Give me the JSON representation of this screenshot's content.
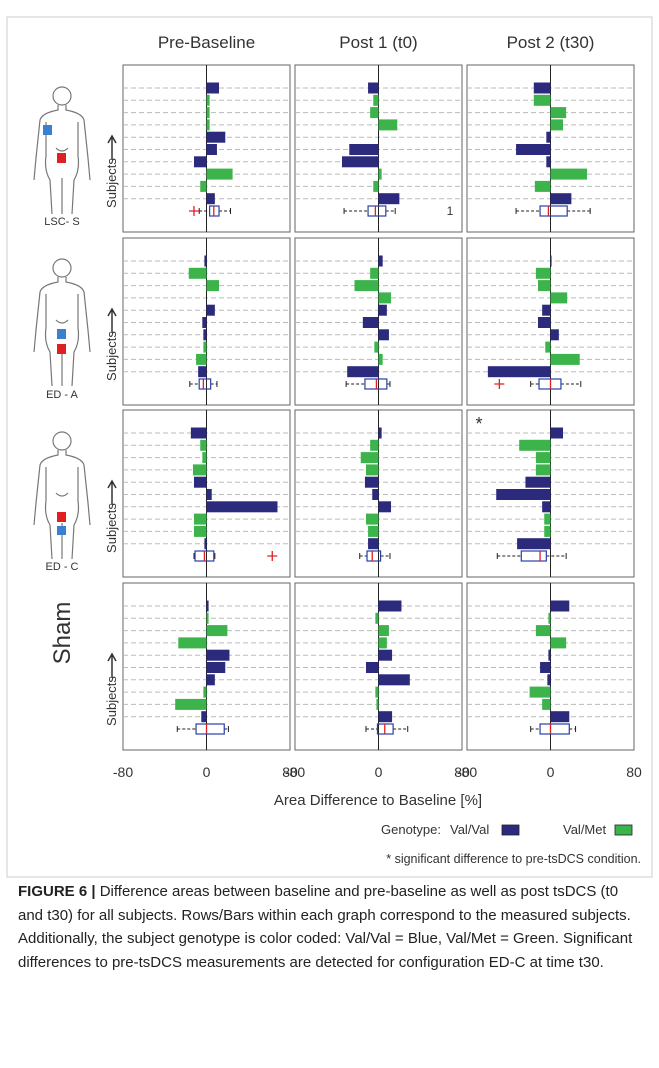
{
  "chart_data": {
    "type": "bar",
    "orientation": "horizontal",
    "column_titles": [
      "Pre-Baseline",
      "Post 1 (t0)",
      "Post 2 (t30)"
    ],
    "row_labels": [
      "LSC- S",
      "ED - A",
      "ED - C",
      "Sham"
    ],
    "ylabel": "Subjects",
    "xlabel": "Area Difference to Baseline [%]",
    "xlim": [
      -80,
      80
    ],
    "xticks": [
      -80,
      0,
      80
    ],
    "grid": true,
    "legend_title": "Genotype:",
    "series": [
      {
        "name": "Val/Val",
        "color": "#2b2a7c"
      },
      {
        "name": "Val/Met",
        "color": "#3cb44b"
      }
    ],
    "panels": [
      [
        {
          "series": [
            {
              "values": [
                12,
                null,
                null,
                null,
                18,
                10,
                -12,
                null,
                null,
                8
              ]
            },
            {
              "values": [
                null,
                3,
                3,
                3,
                null,
                null,
                null,
                25,
                -6,
                null
              ]
            }
          ],
          "box": {
            "whisker_low": -7,
            "q1": 3,
            "median": 7,
            "q3": 12,
            "whisker_high": 23,
            "outliers": [
              -12
            ]
          }
        },
        {
          "series": [
            {
              "values": [
                -10,
                null,
                null,
                null,
                0,
                -28,
                -35,
                null,
                null,
                20
              ]
            },
            {
              "values": [
                null,
                -5,
                -8,
                18,
                null,
                null,
                null,
                3,
                -5,
                null
              ]
            }
          ],
          "box": {
            "whisker_low": -33,
            "q1": -10,
            "median": -3,
            "q3": 7,
            "whisker_high": 16,
            "outliers": []
          },
          "annotation": "1"
        },
        {
          "series": [
            {
              "values": [
                -16,
                null,
                null,
                null,
                -4,
                -33,
                -4,
                null,
                null,
                20
              ]
            },
            {
              "values": [
                null,
                -16,
                15,
                12,
                null,
                null,
                null,
                35,
                -15,
                null
              ]
            }
          ],
          "box": {
            "whisker_low": -33,
            "q1": -10,
            "median": -2,
            "q3": 16,
            "whisker_high": 38,
            "outliers": []
          }
        }
      ],
      [
        {
          "series": [
            {
              "values": [
                -2,
                null,
                null,
                null,
                8,
                -4,
                -3,
                null,
                null,
                -8
              ]
            },
            {
              "values": [
                null,
                -17,
                12,
                0,
                null,
                null,
                null,
                -3,
                -10,
                null
              ]
            }
          ],
          "box": {
            "whisker_low": -16,
            "q1": -7,
            "median": -3,
            "q3": 4,
            "whisker_high": 10,
            "outliers": []
          }
        },
        {
          "series": [
            {
              "values": [
                4,
                null,
                null,
                null,
                8,
                -15,
                10,
                null,
                null,
                -30
              ]
            },
            {
              "values": [
                null,
                -8,
                -23,
                12,
                null,
                null,
                null,
                -4,
                4,
                null
              ]
            }
          ],
          "box": {
            "whisker_low": -31,
            "q1": -13,
            "median": -2,
            "q3": 8,
            "whisker_high": 11,
            "outliers": []
          }
        },
        {
          "series": [
            {
              "values": [
                1,
                null,
                null,
                null,
                -8,
                -12,
                8,
                null,
                null,
                -60
              ]
            },
            {
              "values": [
                null,
                -14,
                -12,
                16,
                null,
                null,
                null,
                -5,
                28,
                null
              ]
            }
          ],
          "box": {
            "whisker_low": -19,
            "q1": -11,
            "median": 0,
            "q3": 10,
            "whisker_high": 29,
            "outliers": [
              -49
            ]
          }
        }
      ],
      [
        {
          "series": [
            {
              "values": [
                -15,
                null,
                null,
                null,
                -12,
                5,
                68,
                null,
                null,
                -2
              ]
            },
            {
              "values": [
                null,
                -6,
                -4,
                -13,
                null,
                null,
                null,
                -12,
                -12,
                null
              ]
            }
          ],
          "box": {
            "whisker_low": -12,
            "q1": -11,
            "median": -2,
            "q3": 7,
            "whisker_high": 8,
            "outliers": [
              63
            ]
          }
        },
        {
          "series": [
            {
              "values": [
                3,
                null,
                null,
                null,
                -13,
                -6,
                12,
                null,
                null,
                -10
              ]
            },
            {
              "values": [
                null,
                -8,
                -17,
                -12,
                null,
                null,
                null,
                -12,
                -10,
                null
              ]
            }
          ],
          "box": {
            "whisker_low": -18,
            "q1": -11,
            "median": -6,
            "q3": 2,
            "whisker_high": 11,
            "outliers": []
          }
        },
        {
          "series": [
            {
              "values": [
                12,
                null,
                null,
                null,
                -24,
                -52,
                -8,
                null,
                null,
                -32
              ]
            },
            {
              "values": [
                null,
                -30,
                -14,
                -14,
                null,
                null,
                null,
                -6,
                -6,
                null
              ]
            }
          ],
          "box": {
            "whisker_low": -51,
            "q1": -28,
            "median": -10,
            "q3": -4,
            "whisker_high": 15,
            "outliers": []
          },
          "annotation": "*"
        }
      ],
      [
        {
          "series": [
            {
              "values": [
                2,
                null,
                null,
                null,
                22,
                18,
                8,
                null,
                null,
                -5
              ]
            },
            {
              "values": [
                null,
                2,
                20,
                -27,
                null,
                null,
                null,
                -3,
                -30,
                null
              ]
            }
          ],
          "box": {
            "whisker_low": -28,
            "q1": -10,
            "median": 0,
            "q3": 17,
            "whisker_high": 21,
            "outliers": []
          }
        },
        {
          "series": [
            {
              "values": [
                22,
                null,
                null,
                null,
                13,
                -12,
                30,
                null,
                null,
                13
              ]
            },
            {
              "values": [
                null,
                -3,
                10,
                8,
                null,
                null,
                null,
                -3,
                -2,
                null
              ]
            }
          ],
          "box": {
            "whisker_low": -12,
            "q1": -1,
            "median": 6,
            "q3": 14,
            "whisker_high": 28,
            "outliers": []
          }
        },
        {
          "series": [
            {
              "values": [
                18,
                null,
                null,
                null,
                -2,
                -10,
                -3,
                null,
                null,
                18
              ]
            },
            {
              "values": [
                null,
                -2,
                -14,
                15,
                null,
                null,
                null,
                -20,
                -8,
                null
              ]
            }
          ],
          "box": {
            "whisker_low": -19,
            "q1": -10,
            "median": 0,
            "q3": 18,
            "whisker_high": 24,
            "outliers": []
          }
        }
      ]
    ],
    "footnote": "* significant difference to pre-tsDCS condition."
  },
  "caption": {
    "label": "FIGURE 6 |",
    "text": "Difference areas between baseline and pre-baseline as well as post tsDCS (t0 and t30) for all subjects. Rows/Bars within each graph correspond to the measured subjects. Additionally, the subject genotype is color coded: Val/Val = Blue, Val/Met = Green. Significant differences to pre-tsDCS measurements are detected for configuration ED-C at time t30."
  }
}
